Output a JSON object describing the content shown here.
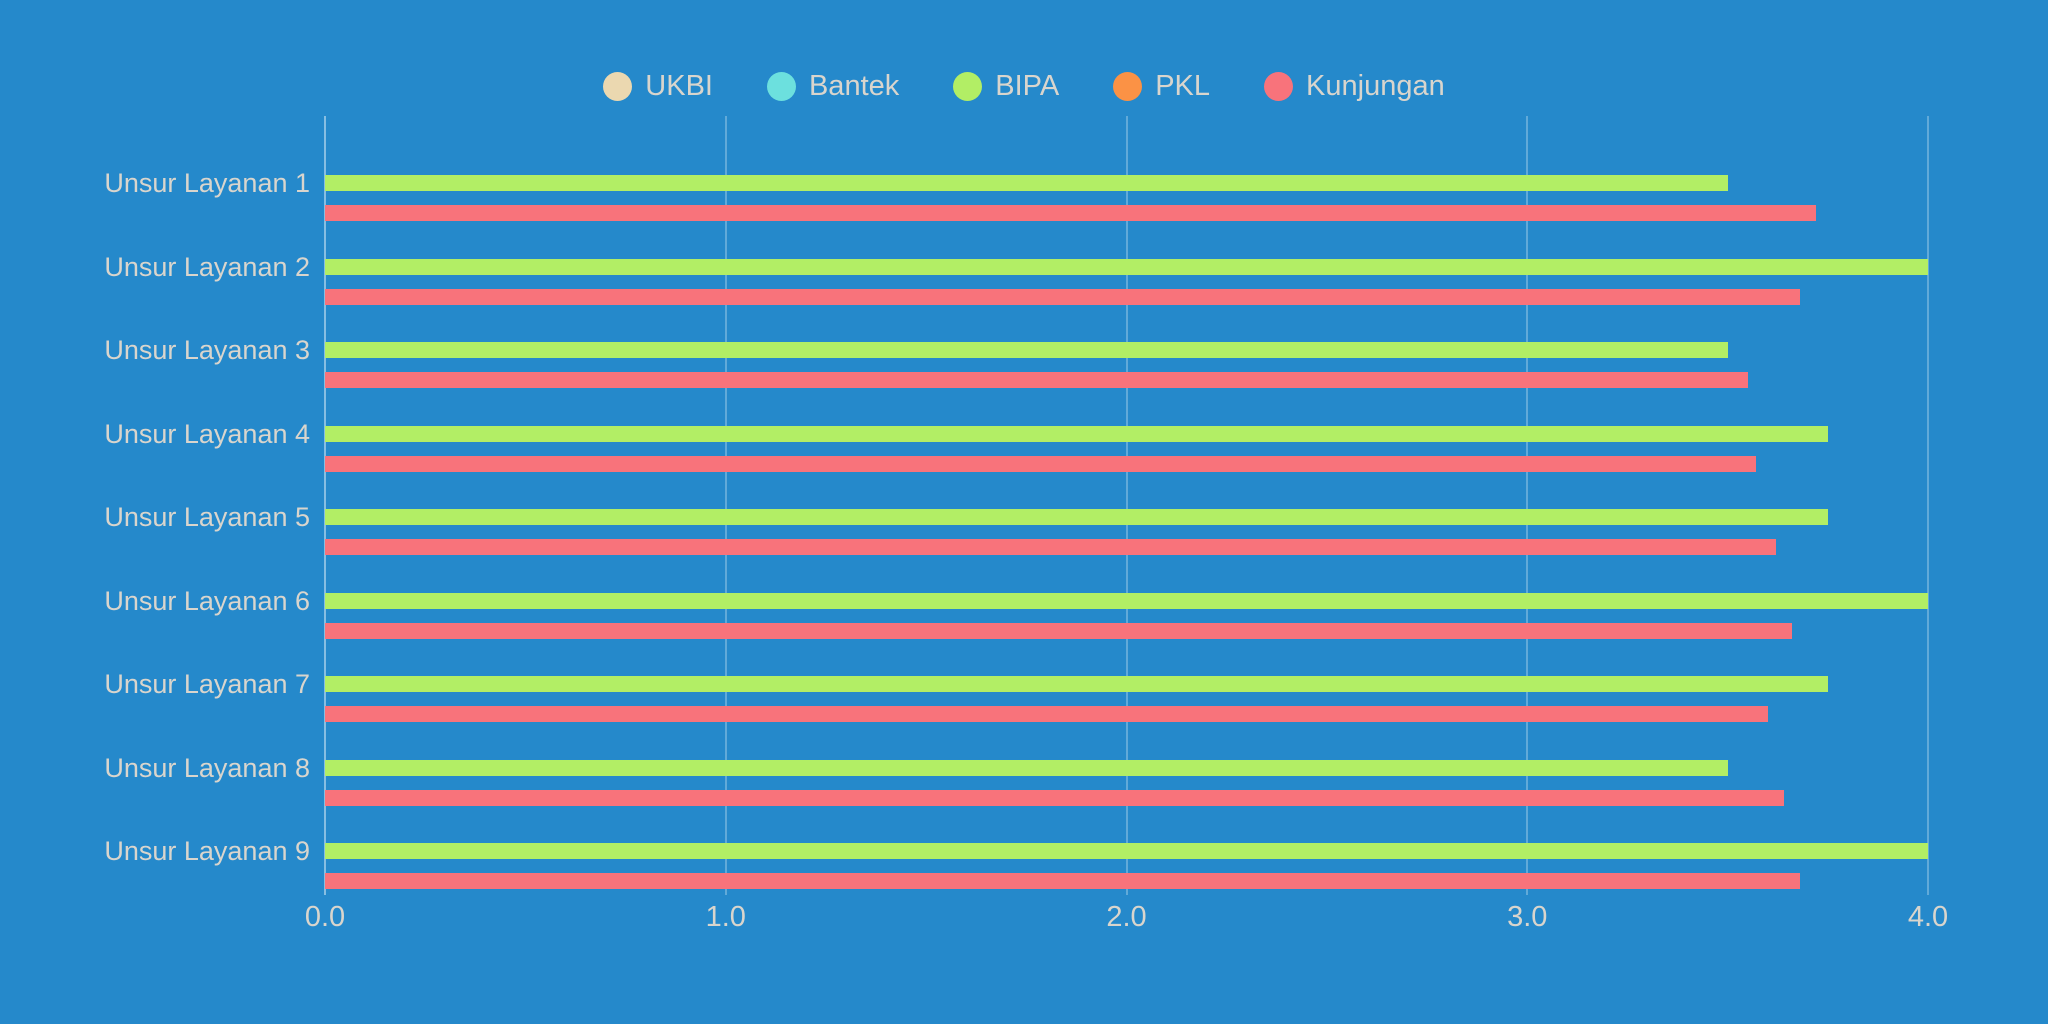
{
  "colors": {
    "background": "#2589CB",
    "text": "#D9D5CD",
    "gridline": "rgba(255,255,255,0.28)",
    "axis_line": "rgba(255,255,255,0.45)"
  },
  "chart_data": {
    "type": "bar",
    "orientation": "horizontal",
    "title": "",
    "xlabel": "",
    "ylabel": "",
    "legend_position": "top",
    "grid": "vertical-only",
    "xlim": [
      0,
      4
    ],
    "x_ticks": [
      "0.0",
      "1.0",
      "2.0",
      "3.0",
      "4.0"
    ],
    "x_tick_values": [
      0,
      1,
      2,
      3,
      4
    ],
    "categories": [
      "Unsur Layanan 1",
      "Unsur Layanan 2",
      "Unsur Layanan 3",
      "Unsur Layanan 4",
      "Unsur Layanan 5",
      "Unsur Layanan 6",
      "Unsur Layanan 7",
      "Unsur Layanan 8",
      "Unsur Layanan 9"
    ],
    "series": [
      {
        "name": "UKBI",
        "color": "#EBD8B0",
        "values": [
          null,
          null,
          null,
          null,
          null,
          null,
          null,
          null,
          null
        ]
      },
      {
        "name": "Bantek",
        "color": "#6CE0DE",
        "values": [
          null,
          null,
          null,
          null,
          null,
          null,
          null,
          null,
          null
        ]
      },
      {
        "name": "BIPA",
        "color": "#B2EE65",
        "values": [
          3.5,
          4.0,
          3.5,
          3.75,
          3.75,
          4.0,
          3.75,
          3.5,
          4.0
        ]
      },
      {
        "name": "PKL",
        "color": "#FB9245",
        "values": [
          null,
          null,
          null,
          null,
          null,
          null,
          null,
          null,
          null
        ]
      },
      {
        "name": "Kunjungan",
        "color": "#F8737B",
        "values": [
          3.72,
          3.68,
          3.55,
          3.57,
          3.62,
          3.66,
          3.6,
          3.64,
          3.68
        ]
      }
    ]
  },
  "layout_note": "horizontal grouped bar chart; only BIPA and Kunjungan series have bars drawn"
}
